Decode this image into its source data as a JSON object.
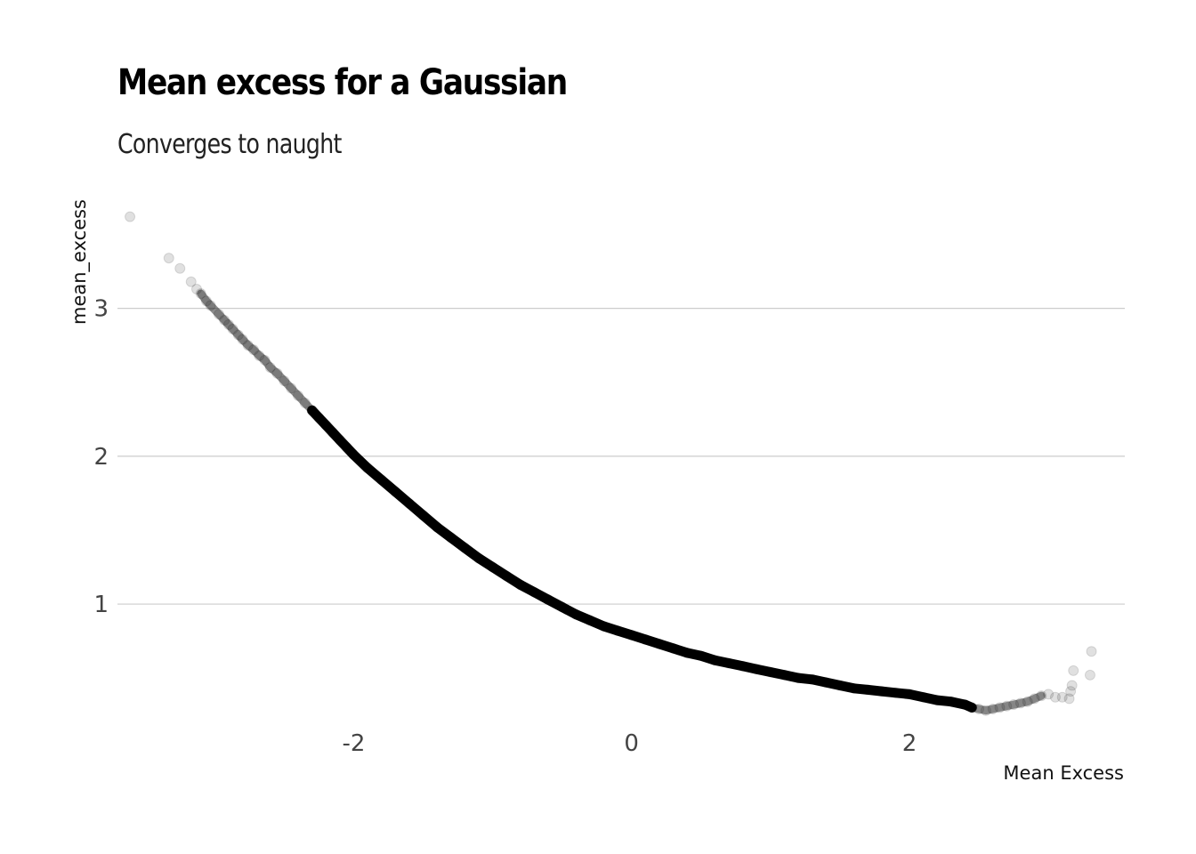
{
  "chart_data": {
    "type": "scatter",
    "title": "Mean excess for a Gaussian",
    "subtitle": "Converges to naught",
    "xlabel": "Mean Excess",
    "ylabel": "mean_excess",
    "xlim": [
      -3.7,
      3.55
    ],
    "ylim": [
      0.2,
      3.75
    ],
    "x_ticks": [
      "-2",
      "0",
      "2"
    ],
    "y_ticks": [
      "1",
      "2",
      "3"
    ],
    "grid": "horizontal",
    "point_color": "#000000",
    "point_alpha": 0.12,
    "series": [
      {
        "points": [
          [
            -3.61,
            3.62
          ],
          [
            -3.33,
            3.34
          ],
          [
            -3.25,
            3.27
          ],
          [
            -3.17,
            3.18
          ],
          [
            -3.13,
            3.13
          ],
          [
            -3.1,
            3.1
          ],
          [
            -3.06,
            3.05
          ],
          [
            -3.03,
            3.02
          ],
          [
            -2.97,
            2.96
          ],
          [
            -2.93,
            2.92
          ],
          [
            -2.9,
            2.89
          ],
          [
            -2.87,
            2.86
          ],
          [
            -2.83,
            2.82
          ],
          [
            -2.8,
            2.79
          ],
          [
            -2.76,
            2.75
          ],
          [
            -2.72,
            2.72
          ],
          [
            -2.68,
            2.68
          ],
          [
            -2.64,
            2.65
          ],
          [
            -2.6,
            2.6
          ],
          [
            -2.55,
            2.56
          ],
          [
            -2.5,
            2.51
          ],
          [
            -2.45,
            2.46
          ],
          [
            -2.4,
            2.41
          ],
          [
            -2.35,
            2.36
          ],
          [
            -2.3,
            2.31
          ],
          [
            -2.25,
            2.26
          ],
          [
            -2.2,
            2.21
          ],
          [
            -2.15,
            2.16
          ],
          [
            -2.1,
            2.11
          ],
          [
            -2.05,
            2.06
          ],
          [
            -2.0,
            2.01
          ],
          [
            -1.9,
            1.92
          ],
          [
            -1.8,
            1.84
          ],
          [
            -1.7,
            1.76
          ],
          [
            -1.6,
            1.68
          ],
          [
            -1.5,
            1.6
          ],
          [
            -1.4,
            1.52
          ],
          [
            -1.3,
            1.45
          ],
          [
            -1.2,
            1.38
          ],
          [
            -1.1,
            1.31
          ],
          [
            -1.0,
            1.25
          ],
          [
            -0.9,
            1.19
          ],
          [
            -0.8,
            1.13
          ],
          [
            -0.7,
            1.08
          ],
          [
            -0.6,
            1.03
          ],
          [
            -0.5,
            0.98
          ],
          [
            -0.4,
            0.93
          ],
          [
            -0.3,
            0.89
          ],
          [
            -0.2,
            0.85
          ],
          [
            -0.1,
            0.82
          ],
          [
            0.0,
            0.79
          ],
          [
            0.1,
            0.76
          ],
          [
            0.2,
            0.73
          ],
          [
            0.3,
            0.7
          ],
          [
            0.4,
            0.67
          ],
          [
            0.5,
            0.65
          ],
          [
            0.6,
            0.62
          ],
          [
            0.7,
            0.6
          ],
          [
            0.8,
            0.58
          ],
          [
            0.9,
            0.56
          ],
          [
            1.0,
            0.54
          ],
          [
            1.1,
            0.52
          ],
          [
            1.2,
            0.5
          ],
          [
            1.3,
            0.49
          ],
          [
            1.4,
            0.47
          ],
          [
            1.5,
            0.45
          ],
          [
            1.6,
            0.43
          ],
          [
            1.7,
            0.42
          ],
          [
            1.8,
            0.41
          ],
          [
            1.9,
            0.4
          ],
          [
            2.0,
            0.39
          ],
          [
            2.1,
            0.37
          ],
          [
            2.2,
            0.35
          ],
          [
            2.3,
            0.34
          ],
          [
            2.4,
            0.32
          ],
          [
            2.45,
            0.3
          ],
          [
            2.5,
            0.29
          ],
          [
            2.55,
            0.28
          ],
          [
            2.6,
            0.29
          ],
          [
            2.65,
            0.3
          ],
          [
            2.7,
            0.31
          ],
          [
            2.75,
            0.32
          ],
          [
            2.8,
            0.33
          ],
          [
            2.85,
            0.34
          ],
          [
            2.9,
            0.36
          ],
          [
            2.95,
            0.38
          ],
          [
            3.0,
            0.39
          ],
          [
            3.05,
            0.37
          ],
          [
            3.1,
            0.37
          ],
          [
            3.15,
            0.36
          ],
          [
            3.16,
            0.41
          ],
          [
            3.17,
            0.45
          ],
          [
            3.18,
            0.55
          ],
          [
            3.3,
            0.52
          ],
          [
            3.31,
            0.68
          ]
        ]
      }
    ]
  }
}
